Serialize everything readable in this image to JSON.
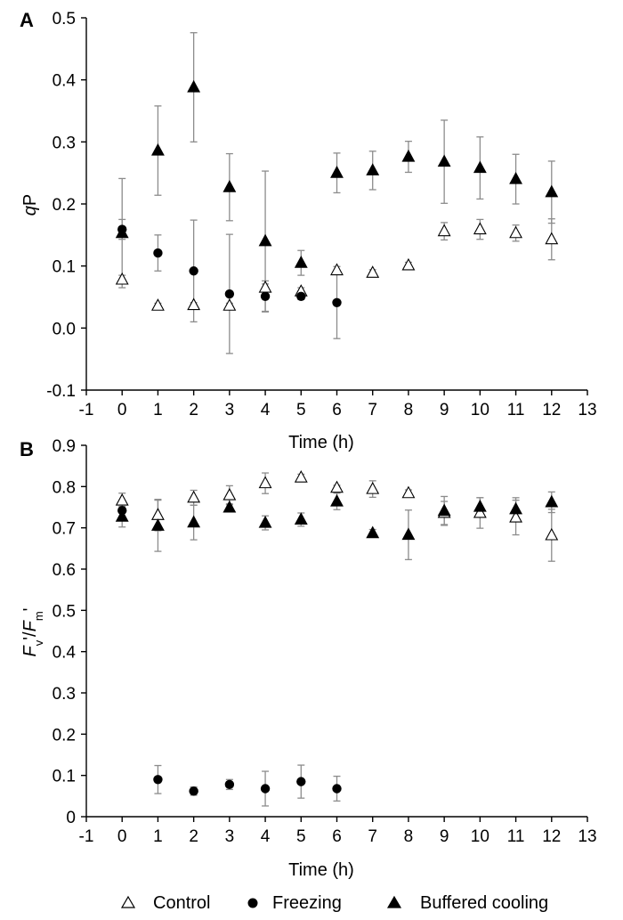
{
  "chart_data": [
    {
      "panel": "A",
      "type": "scatter",
      "xlabel": "Time (h)",
      "ylabel": "qP",
      "xlim": [
        -1,
        13
      ],
      "ylim": [
        -0.1,
        0.5
      ],
      "xticks": [
        "-1",
        "0",
        "1",
        "2",
        "3",
        "4",
        "5",
        "6",
        "7",
        "8",
        "9",
        "10",
        "11",
        "12",
        "13"
      ],
      "yticks": [
        "-0.1",
        "0.0",
        "0.1",
        "0.2",
        "0.3",
        "0.4",
        "0.5"
      ],
      "grid": false,
      "series": [
        {
          "name": "Control",
          "marker": "open-triangle",
          "points": [
            {
              "x": 0,
              "y": 0.078,
              "err": 0.007
            },
            {
              "x": 1,
              "y": 0.036,
              "err": 0.004
            },
            {
              "x": 2,
              "y": 0.037,
              "err": 0.004
            },
            {
              "x": 3,
              "y": 0.036,
              "err": 0.004
            },
            {
              "x": 4,
              "y": 0.065,
              "err": 0.006
            },
            {
              "x": 5,
              "y": 0.059,
              "err": 0.006
            },
            {
              "x": 6,
              "y": 0.093,
              "err": 0.006
            },
            {
              "x": 7,
              "y": 0.089,
              "err": 0.005
            },
            {
              "x": 8,
              "y": 0.101,
              "err": 0.005
            },
            {
              "x": 9,
              "y": 0.156,
              "err": 0.014
            },
            {
              "x": 10,
              "y": 0.159,
              "err": 0.016
            },
            {
              "x": 11,
              "y": 0.153,
              "err": 0.013
            },
            {
              "x": 12,
              "y": 0.143,
              "err": 0.033
            }
          ]
        },
        {
          "name": "Freezing",
          "marker": "filled-circle",
          "points": [
            {
              "x": 0,
              "y": 0.159,
              "err": 0.016
            },
            {
              "x": 1,
              "y": 0.121,
              "err": 0.029
            },
            {
              "x": 2,
              "y": 0.092,
              "err": 0.082
            },
            {
              "x": 3,
              "y": 0.055,
              "err": 0.096
            },
            {
              "x": 4,
              "y": 0.051,
              "err": 0.025
            },
            {
              "x": 5,
              "y": 0.051,
              "err": 0.005
            },
            {
              "x": 6,
              "y": 0.041,
              "err": 0.058
            }
          ]
        },
        {
          "name": "Buffered cooling",
          "marker": "filled-triangle",
          "points": [
            {
              "x": 0,
              "y": 0.153,
              "err": 0.088
            },
            {
              "x": 1,
              "y": 0.286,
              "err": 0.072
            },
            {
              "x": 2,
              "y": 0.388,
              "err": 0.088
            },
            {
              "x": 3,
              "y": 0.227,
              "err": 0.054
            },
            {
              "x": 4,
              "y": 0.14,
              "err": 0.113
            },
            {
              "x": 5,
              "y": 0.105,
              "err": 0.02
            },
            {
              "x": 6,
              "y": 0.25,
              "err": 0.032
            },
            {
              "x": 7,
              "y": 0.254,
              "err": 0.031
            },
            {
              "x": 8,
              "y": 0.276,
              "err": 0.025
            },
            {
              "x": 9,
              "y": 0.268,
              "err": 0.067
            },
            {
              "x": 10,
              "y": 0.258,
              "err": 0.05
            },
            {
              "x": 11,
              "y": 0.24,
              "err": 0.04
            },
            {
              "x": 12,
              "y": 0.219,
              "err": 0.05
            }
          ]
        }
      ]
    },
    {
      "panel": "B",
      "type": "scatter",
      "xlabel": "Time (h)",
      "ylabel": "Fv'/Fm'",
      "xlim": [
        -1,
        13
      ],
      "ylim": [
        0,
        0.9
      ],
      "xticks": [
        "-1",
        "0",
        "1",
        "2",
        "3",
        "4",
        "5",
        "6",
        "7",
        "8",
        "9",
        "10",
        "11",
        "12",
        "13"
      ],
      "yticks": [
        "0",
        "0.1",
        "0.2",
        "0.3",
        "0.4",
        "0.5",
        "0.6",
        "0.7",
        "0.8",
        "0.9"
      ],
      "grid": false,
      "series": [
        {
          "name": "Control",
          "marker": "open-triangle",
          "points": [
            {
              "x": 0,
              "y": 0.766,
              "err": 0.018
            },
            {
              "x": 1,
              "y": 0.731,
              "err": 0.038
            },
            {
              "x": 2,
              "y": 0.773,
              "err": 0.018
            },
            {
              "x": 3,
              "y": 0.779,
              "err": 0.023
            },
            {
              "x": 4,
              "y": 0.808,
              "err": 0.025
            },
            {
              "x": 5,
              "y": 0.822,
              "err": 0.008
            },
            {
              "x": 6,
              "y": 0.797,
              "err": 0.006
            },
            {
              "x": 7,
              "y": 0.794,
              "err": 0.02
            },
            {
              "x": 8,
              "y": 0.784,
              "err": 0.008
            },
            {
              "x": 9,
              "y": 0.736,
              "err": 0.028
            },
            {
              "x": 10,
              "y": 0.736,
              "err": 0.037
            },
            {
              "x": 11,
              "y": 0.725,
              "err": 0.042
            },
            {
              "x": 12,
              "y": 0.682,
              "err": 0.063
            }
          ]
        },
        {
          "name": "Freezing",
          "marker": "filled-circle",
          "points": [
            {
              "x": 0,
              "y": 0.742,
              "err": 0.015
            },
            {
              "x": 1,
              "y": 0.09,
              "err": 0.034
            },
            {
              "x": 2,
              "y": 0.062,
              "err": 0.01
            },
            {
              "x": 3,
              "y": 0.078,
              "err": 0.012
            },
            {
              "x": 4,
              "y": 0.068,
              "err": 0.042
            },
            {
              "x": 5,
              "y": 0.085,
              "err": 0.04
            },
            {
              "x": 6,
              "y": 0.068,
              "err": 0.03
            }
          ]
        },
        {
          "name": "Buffered cooling",
          "marker": "filled-triangle",
          "points": [
            {
              "x": 0,
              "y": 0.727,
              "err": 0.025
            },
            {
              "x": 1,
              "y": 0.705,
              "err": 0.062
            },
            {
              "x": 2,
              "y": 0.713,
              "err": 0.042
            },
            {
              "x": 3,
              "y": 0.749,
              "err": 0.009
            },
            {
              "x": 4,
              "y": 0.712,
              "err": 0.017
            },
            {
              "x": 5,
              "y": 0.72,
              "err": 0.016
            },
            {
              "x": 6,
              "y": 0.764,
              "err": 0.02
            },
            {
              "x": 7,
              "y": 0.687,
              "err": 0.009
            },
            {
              "x": 8,
              "y": 0.683,
              "err": 0.06
            },
            {
              "x": 9,
              "y": 0.741,
              "err": 0.035
            },
            {
              "x": 10,
              "y": 0.751,
              "err": 0.022
            },
            {
              "x": 11,
              "y": 0.745,
              "err": 0.028
            },
            {
              "x": 12,
              "y": 0.762,
              "err": 0.025
            }
          ]
        }
      ]
    }
  ],
  "legend": {
    "placement": "bottom",
    "items": [
      {
        "label": "Control",
        "marker": "open-triangle"
      },
      {
        "label": "Freezing",
        "marker": "filled-circle"
      },
      {
        "label": "Buffered cooling",
        "marker": "filled-triangle"
      }
    ]
  },
  "labels": {
    "panel_a": "A",
    "panel_b": "B",
    "time_a": "Time (h)",
    "time_b": "Time (h)",
    "qp_q": "q",
    "qp_p": "P",
    "fv_f": "F",
    "fv_v": "v",
    "fv_prime1": "'",
    "fv_slash": "/",
    "fm_f": "F",
    "fm_m": "m",
    "fm_prime": "'"
  }
}
